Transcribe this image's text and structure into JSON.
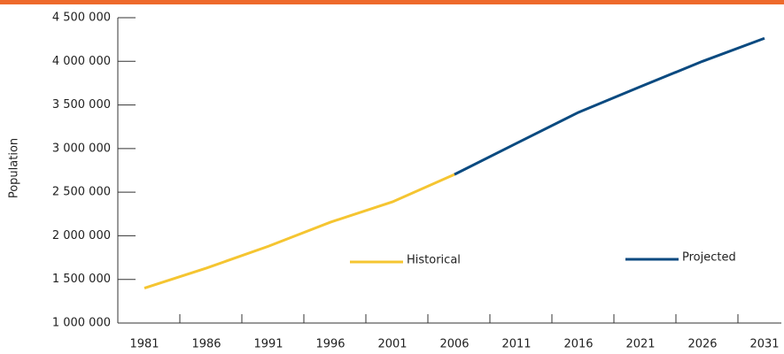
{
  "chart_data": {
    "type": "line",
    "y_label": "Population",
    "categories": [
      "1981",
      "1986",
      "1991",
      "1996",
      "2001",
      "2006",
      "2011",
      "2016",
      "2021",
      "2026",
      "2031"
    ],
    "series": [
      {
        "name": "Historical",
        "color": "#f5c531",
        "values": [
          1400000,
          1630000,
          1880000,
          2156000,
          2389000,
          2703000,
          null,
          null,
          null,
          null,
          null
        ]
      },
      {
        "name": "Projected",
        "color": "#0a4a80",
        "values": [
          null,
          null,
          null,
          null,
          null,
          2703000,
          3060000,
          3415000,
          3710000,
          4000000,
          4264000
        ]
      }
    ],
    "ylim": [
      1000000,
      4500000
    ],
    "yticks": [
      {
        "value": 1000000,
        "label": "1 000 000"
      },
      {
        "value": 1500000,
        "label": "1 500 000"
      },
      {
        "value": 2000000,
        "label": "2 000 000"
      },
      {
        "value": 2500000,
        "label": "2 500 000"
      },
      {
        "value": 3000000,
        "label": "3 000 000"
      },
      {
        "value": 3500000,
        "label": "3 500 000"
      },
      {
        "value": 4000000,
        "label": "4 000 000"
      },
      {
        "value": 4500000,
        "label": "4 500 000"
      }
    ],
    "grid": false
  }
}
